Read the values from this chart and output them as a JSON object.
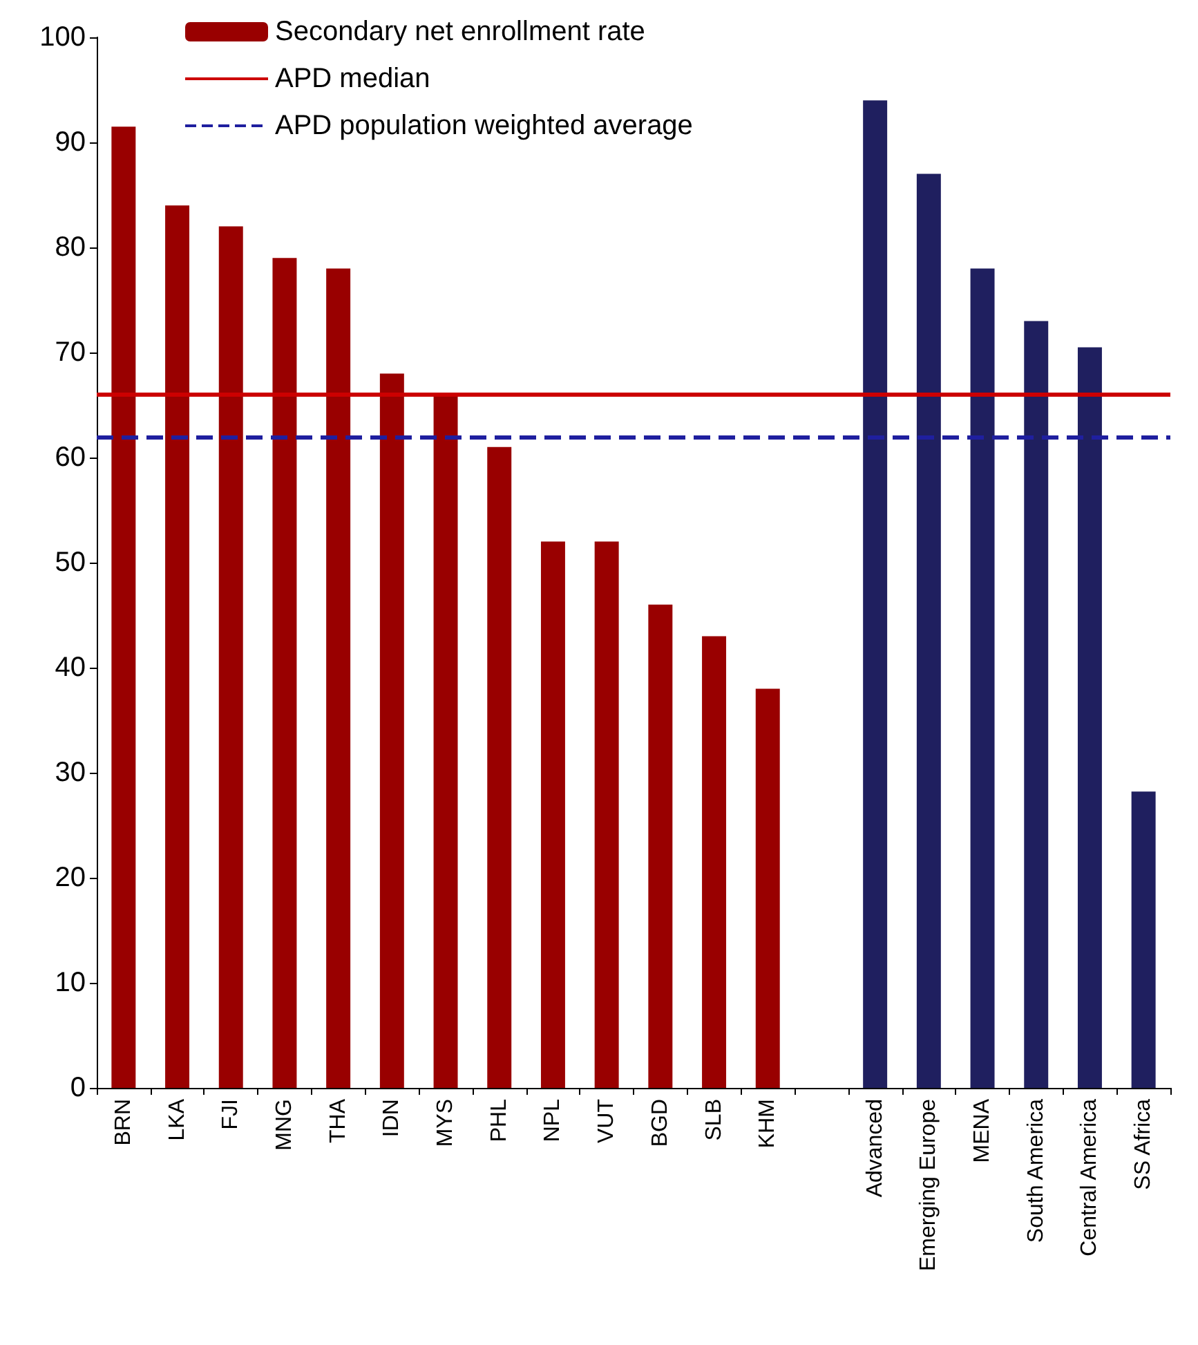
{
  "chart_data": {
    "type": "bar",
    "categories": [
      "BRN",
      "LKA",
      "FJI",
      "MNG",
      "THA",
      "IDN",
      "MYS",
      "PHL",
      "NPL",
      "VUT",
      "BGD",
      "SLB",
      "KHM",
      null,
      "Advanced",
      "Emerging Europe",
      "MENA",
      "South America",
      "Central America",
      "SS Africa"
    ],
    "series": [
      {
        "name": "Secondary net enrollment rate",
        "values": [
          91.5,
          84,
          82,
          79,
          78,
          68,
          66,
          61,
          52,
          52,
          46,
          43,
          38,
          null,
          94,
          87,
          78,
          73,
          70.5,
          28.2
        ]
      }
    ],
    "colors": [
      "#990000",
      "#990000",
      "#990000",
      "#990000",
      "#990000",
      "#990000",
      "#990000",
      "#990000",
      "#990000",
      "#990000",
      "#990000",
      "#990000",
      "#990000",
      null,
      "#1f1f5f",
      "#1f1f5f",
      "#1f1f5f",
      "#1f1f5f",
      "#1f1f5f",
      "#1f1f5f"
    ],
    "ref_lines": [
      {
        "axis": "y",
        "value": 66,
        "label": "APD median",
        "color": "#cc0000",
        "line_style": "solid"
      },
      {
        "axis": "y",
        "value": 62,
        "label": "APD population weighted average",
        "color": "#1f1f9f",
        "line_style": "dashed"
      }
    ],
    "ylim": [
      0,
      100
    ],
    "yticks": [
      0,
      10,
      20,
      30,
      40,
      50,
      60,
      70,
      80,
      90,
      100
    ],
    "grid": false,
    "legend": "top left"
  }
}
